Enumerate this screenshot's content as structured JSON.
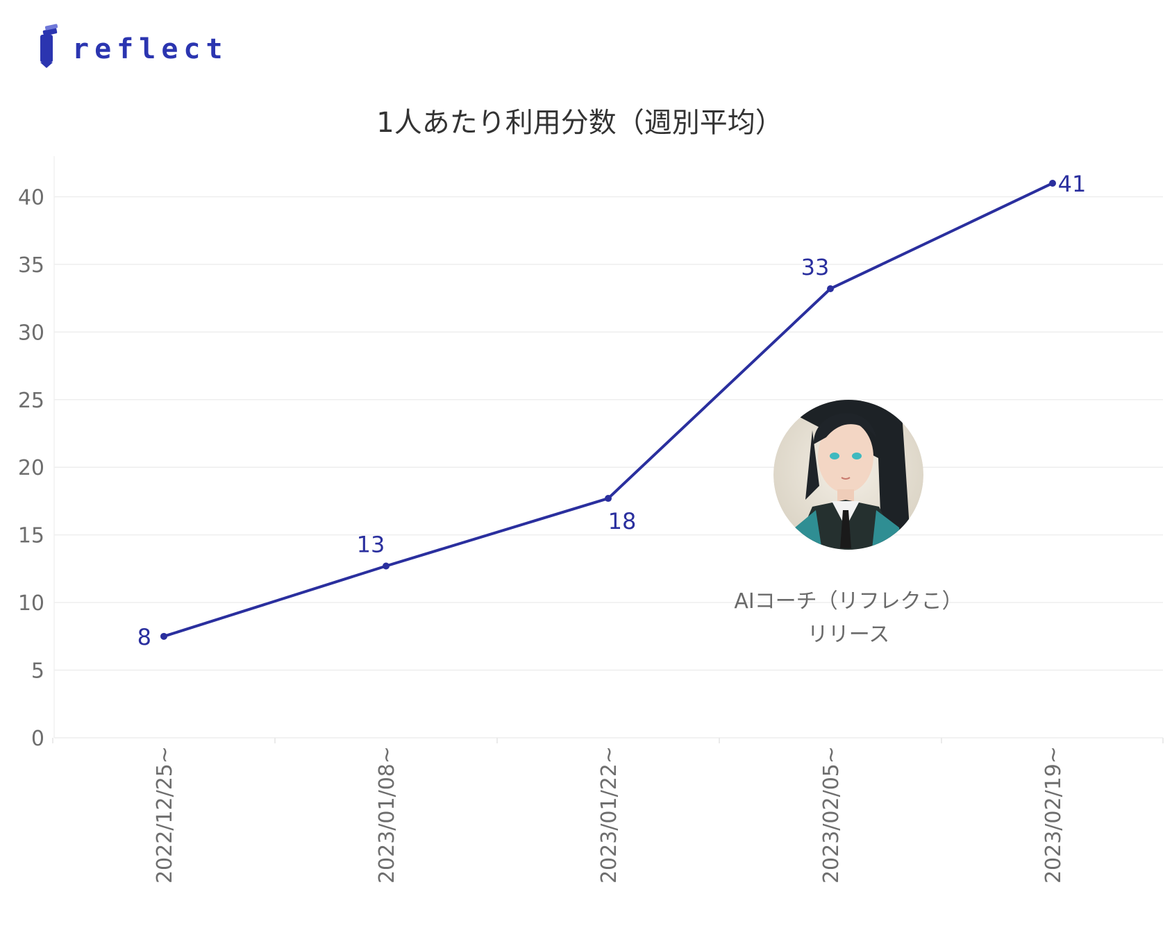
{
  "brand": {
    "name": "reflect",
    "logo_icon": "pencil-logo-icon"
  },
  "chart_data": {
    "type": "line",
    "title": "1人あたり利用分数（週別平均）",
    "xlabel": "",
    "ylabel": "",
    "categories": [
      "2022/12/25~",
      "2023/01/08~",
      "2023/01/22~",
      "2023/02/05~",
      "2023/02/19~"
    ],
    "series": [
      {
        "values": [
          7.5,
          12.7,
          17.7,
          33.2,
          41.0
        ],
        "labels": [
          "8",
          "13",
          "18",
          "33",
          "41"
        ],
        "color": "#2a2f9e"
      }
    ],
    "ylim": [
      0,
      43
    ],
    "yticks": [
      0,
      5,
      10,
      15,
      20,
      25,
      30,
      35,
      40
    ],
    "grid": true,
    "legend": "none",
    "annotation": {
      "line1": "AIコーチ（リフレクこ）",
      "line2": "リリース",
      "image": "ai-coach-avatar",
      "x_category": "2023/02/05~"
    }
  }
}
